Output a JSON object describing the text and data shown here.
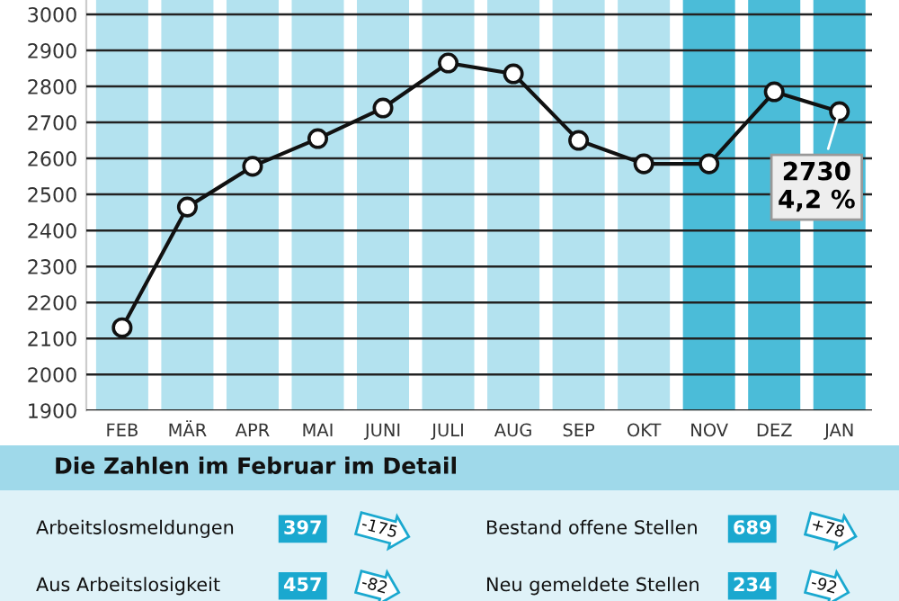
{
  "chart_data": {
    "type": "line",
    "subtitle": "Die Zahlen im Februar im Detail",
    "categories": [
      "FEB",
      "MÄR",
      "APR",
      "MAI",
      "JUNI",
      "JULI",
      "AUG",
      "SEP",
      "OKT",
      "NOV",
      "DEZ",
      "JAN"
    ],
    "series": [
      {
        "color": "#111111",
        "values": [
          2130,
          2465,
          2578,
          2655,
          2740,
          2865,
          2835,
          2650,
          2585,
          2585,
          2785,
          2730
        ]
      }
    ],
    "ylim": [
      1900,
      3040
    ],
    "yticks": [
      1900,
      2000,
      2100,
      2200,
      2300,
      2400,
      2500,
      2600,
      2700,
      2800,
      2900,
      3000
    ],
    "grid": "y",
    "marker": "circle",
    "line_style": "solid",
    "bands": [
      {
        "axis": "x",
        "from": "FEB",
        "to": "FEB",
        "color": "#b3e2ef"
      },
      {
        "axis": "x",
        "from": "MÄR",
        "to": "MÄR",
        "color": "#b3e2ef"
      },
      {
        "axis": "x",
        "from": "APR",
        "to": "APR",
        "color": "#b3e2ef"
      },
      {
        "axis": "x",
        "from": "MAI",
        "to": "MAI",
        "color": "#b3e2ef"
      },
      {
        "axis": "x",
        "from": "JUNI",
        "to": "JUNI",
        "color": "#b3e2ef"
      },
      {
        "axis": "x",
        "from": "JULI",
        "to": "JULI",
        "color": "#b3e2ef"
      },
      {
        "axis": "x",
        "from": "AUG",
        "to": "AUG",
        "color": "#b3e2ef"
      },
      {
        "axis": "x",
        "from": "SEP",
        "to": "SEP",
        "color": "#b3e2ef"
      },
      {
        "axis": "x",
        "from": "OKT",
        "to": "OKT",
        "color": "#b3e2ef"
      },
      {
        "axis": "x",
        "from": "NOV",
        "to": "NOV",
        "color": "#4bbcd8"
      },
      {
        "axis": "x",
        "from": "DEZ",
        "to": "DEZ",
        "color": "#4bbcd8"
      },
      {
        "axis": "x",
        "from": "JAN",
        "to": "JAN",
        "color": "#4bbcd8"
      }
    ],
    "annotations": [
      {
        "text": "2730\n4,2 %",
        "x": "JAN",
        "y": 2730
      },
      "Arbeitslosmeldungen",
      "397",
      "-175",
      "Bestand offene Stellen",
      "689",
      "+78",
      "Aus Arbeitslosigkeit",
      "457",
      "-82",
      "Neu gemeldete Stellen",
      "234",
      "-92"
    ]
  }
}
